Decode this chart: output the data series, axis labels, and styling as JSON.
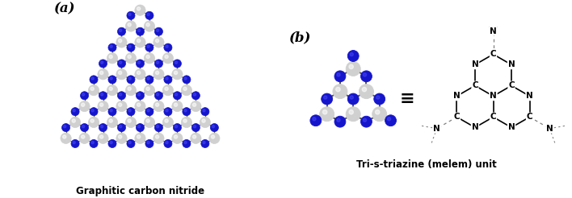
{
  "title_a": "(a)",
  "title_b": "(b)",
  "label_a": "Graphitic carbon nitride",
  "label_b": "Tri-s-triazine (melem) unit",
  "carbon_color": "#D0D0D0",
  "nitrogen_color": "#1515CC",
  "bond_color": "#555555",
  "background_color": "#FFFFFF",
  "equiv_symbol": "≡"
}
